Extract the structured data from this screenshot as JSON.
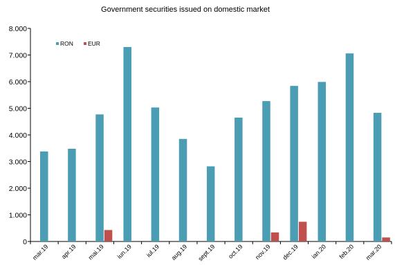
{
  "chart_data": {
    "type": "bar",
    "title": "Government securities issued on domestic market",
    "xlabel": "",
    "ylabel": "",
    "categories": [
      "mar.19",
      "apr.19",
      "mai.19",
      "iun.19",
      "iul.19",
      "aug.19",
      "sept.19",
      "oct.19",
      "nov.19",
      "dec.19",
      "ian.20",
      "feb.20",
      "mar.20"
    ],
    "series": [
      {
        "name": "RON",
        "color": "#4a9db3",
        "values": [
          3380,
          3480,
          4770,
          7300,
          5030,
          3850,
          2820,
          4650,
          5270,
          5840,
          5990,
          7060,
          4830
        ]
      },
      {
        "name": "EUR",
        "color": "#c0504d",
        "values": [
          0,
          0,
          430,
          0,
          0,
          0,
          0,
          0,
          340,
          740,
          0,
          0,
          150
        ]
      }
    ],
    "ylim": [
      0,
      8000
    ],
    "yticks": [
      0,
      1000,
      2000,
      3000,
      4000,
      5000,
      6000,
      7000,
      8000
    ],
    "ytick_labels": [
      "0",
      "1.000",
      "2.000",
      "3.000",
      "4.000",
      "5.000",
      "6.000",
      "7.000",
      "8.000"
    ],
    "grid": false,
    "legend_position": "top-left"
  }
}
